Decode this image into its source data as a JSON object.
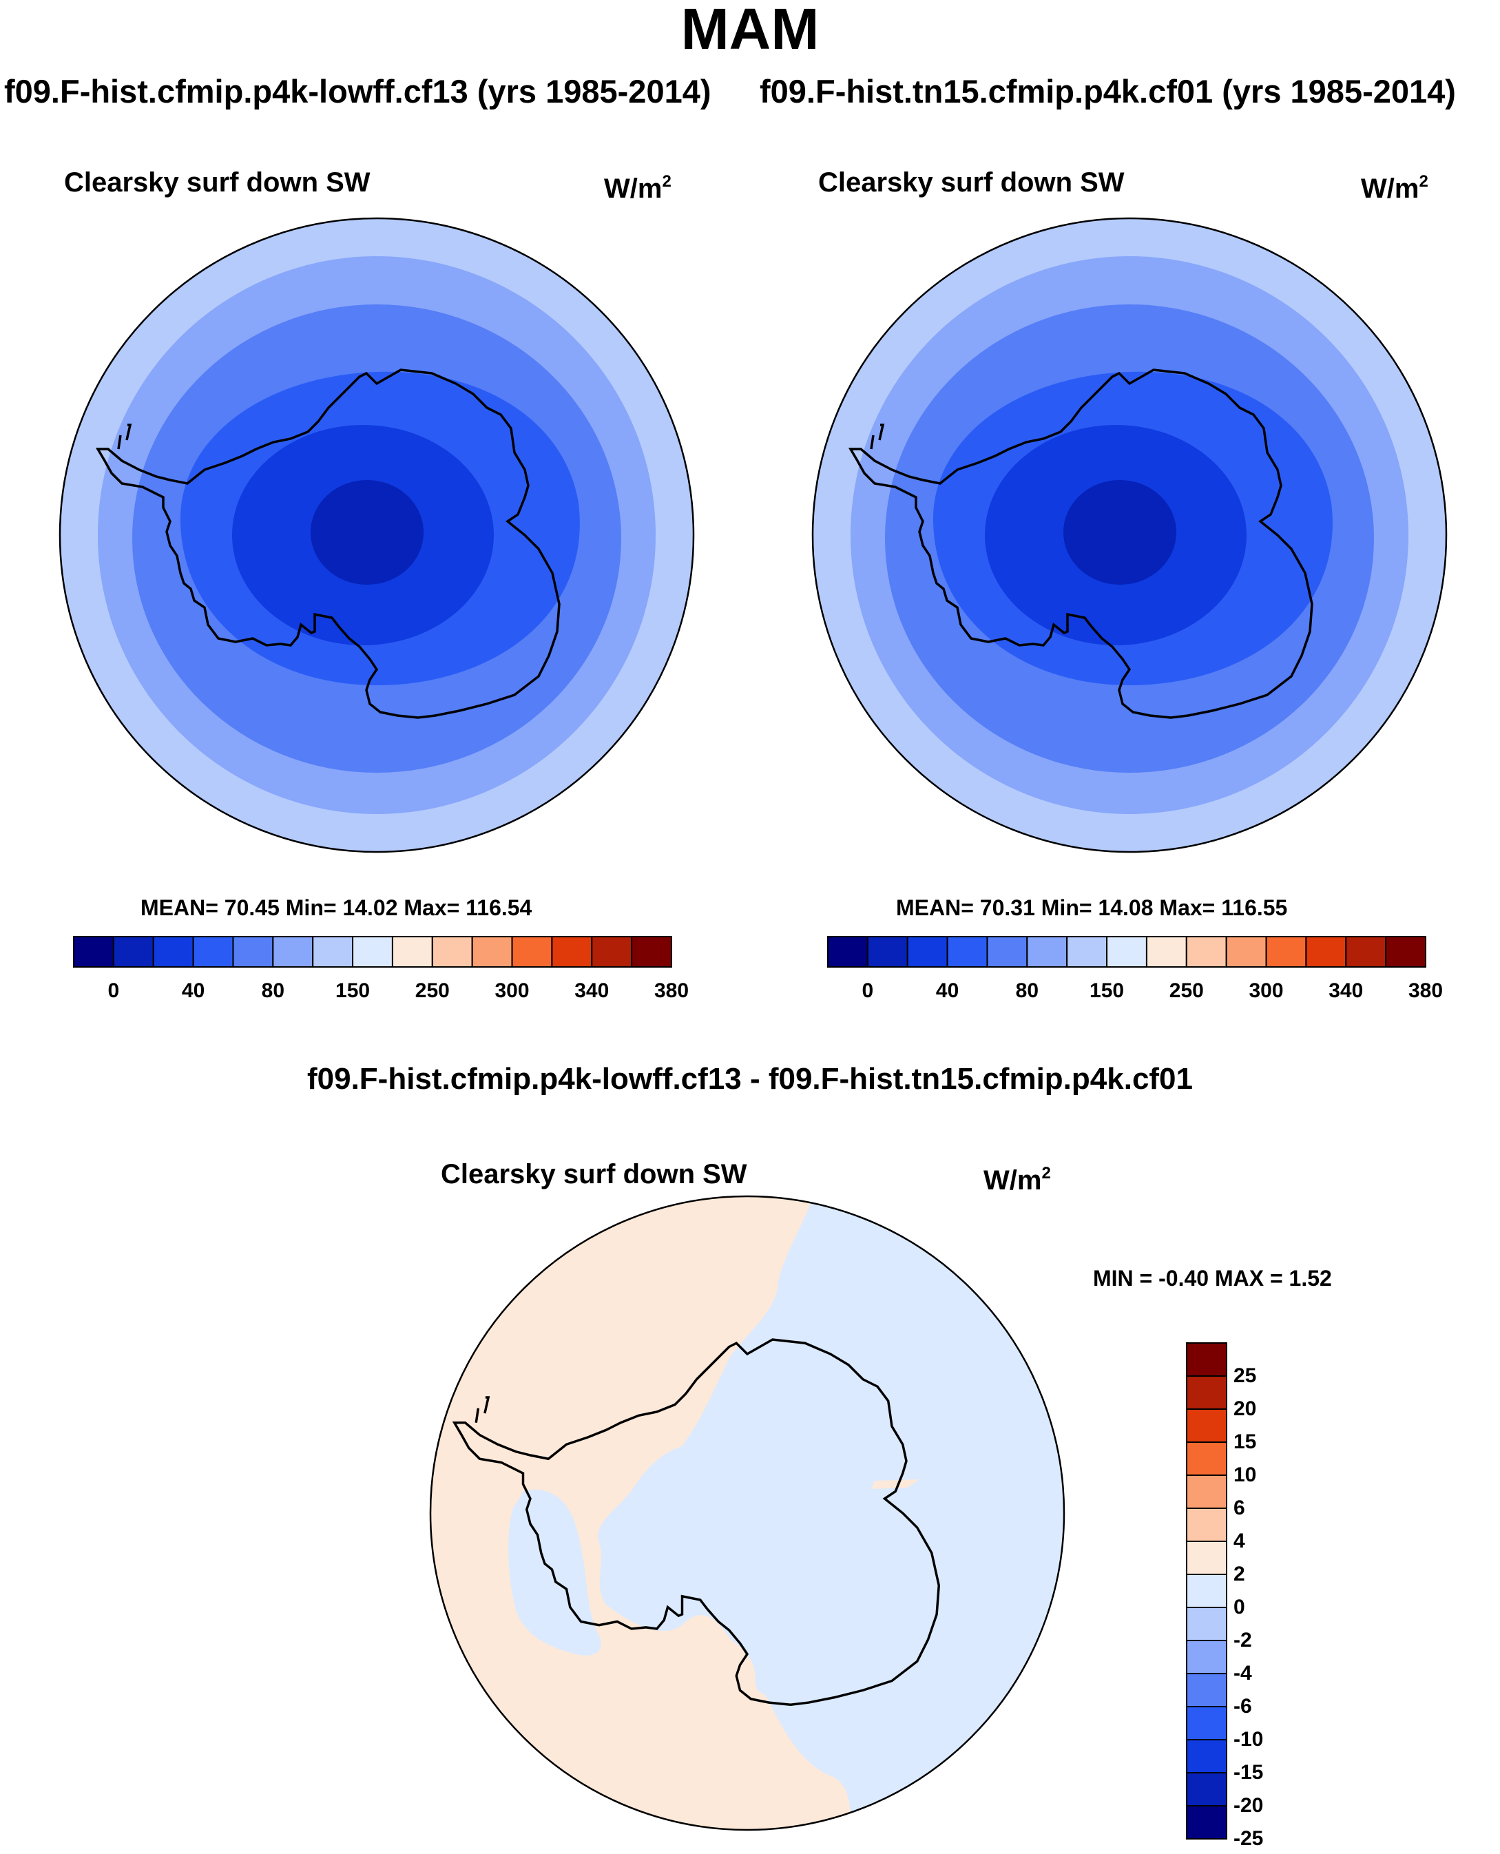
{
  "season": "MAM",
  "case_a": {
    "title": "f09.F-hist.cfmip.p4k-lowff.cf13 (yrs 1985-2014)"
  },
  "case_b": {
    "title": "f09.F-hist.tn15.cfmip.p4k.cf01 (yrs 1985-2014)"
  },
  "diff_title": "f09.F-hist.cfmip.p4k-lowff.cf13 - f09.F-hist.tn15.cfmip.p4k.cf01",
  "panels": {
    "left": {
      "variable": "Clearsky surf down SW",
      "units_base": "W/m",
      "units_exp": "2",
      "stats": "MEAN=  70.45  Min=  14.02  Max= 116.54"
    },
    "right": {
      "variable": "Clearsky surf down SW",
      "units_base": "W/m",
      "units_exp": "2",
      "stats": "MEAN=  70.31  Min=  14.08  Max= 116.55"
    },
    "diff": {
      "variable": "Clearsky surf down SW",
      "units_base": "W/m",
      "units_exp": "2",
      "stats": "MIN =  -0.40 MAX =   1.52"
    }
  },
  "chart_data": [
    {
      "type": "heatmap",
      "projection": "south-polar-stereographic",
      "title": "Clearsky surf down SW",
      "case": "f09.F-hist.cfmip.p4k-lowff.cf13",
      "units": "W/m2",
      "mean": 70.45,
      "min": 14.02,
      "max": 116.54,
      "colorbar_ticks": [
        "0",
        "40",
        "80",
        "150",
        "250",
        "300",
        "340",
        "380"
      ],
      "colorbar_colors": [
        "#000080",
        "#0622b8",
        "#0f3be0",
        "#2a5cf5",
        "#557ef7",
        "#88a6fa",
        "#b4cbfc",
        "#dbeafe",
        "#fde9d9",
        "#fcc8a9",
        "#fa9f72",
        "#f66a30",
        "#e03a0a",
        "#b01f06",
        "#7a0000"
      ]
    },
    {
      "type": "heatmap",
      "projection": "south-polar-stereographic",
      "title": "Clearsky surf down SW",
      "case": "f09.F-hist.tn15.cfmip.p4k.cf01",
      "units": "W/m2",
      "mean": 70.31,
      "min": 14.08,
      "max": 116.55,
      "colorbar_ticks": [
        "0",
        "40",
        "80",
        "150",
        "250",
        "300",
        "340",
        "380"
      ],
      "colorbar_colors": [
        "#000080",
        "#0622b8",
        "#0f3be0",
        "#2a5cf5",
        "#557ef7",
        "#88a6fa",
        "#b4cbfc",
        "#dbeafe",
        "#fde9d9",
        "#fcc8a9",
        "#fa9f72",
        "#f66a30",
        "#e03a0a",
        "#b01f06",
        "#7a0000"
      ]
    },
    {
      "type": "heatmap",
      "projection": "south-polar-stereographic",
      "title": "Clearsky surf down SW",
      "case": "f09.F-hist.cfmip.p4k-lowff.cf13 - f09.F-hist.tn15.cfmip.p4k.cf01",
      "units": "W/m2",
      "min": -0.4,
      "max": 1.52,
      "colorbar_ticks": [
        "25",
        "20",
        "15",
        "10",
        "6",
        "4",
        "2",
        "0",
        "-2",
        "-4",
        "-6",
        "-10",
        "-15",
        "-20",
        "-25"
      ],
      "colorbar_colors": [
        "#7a0000",
        "#b01f06",
        "#e03a0a",
        "#f66a30",
        "#fa9f72",
        "#fcc8a9",
        "#fde9d9",
        "#dbeafe",
        "#b4cbfc",
        "#88a6fa",
        "#557ef7",
        "#2a5cf5",
        "#0f3be0",
        "#0622b8",
        "#000080"
      ]
    }
  ]
}
